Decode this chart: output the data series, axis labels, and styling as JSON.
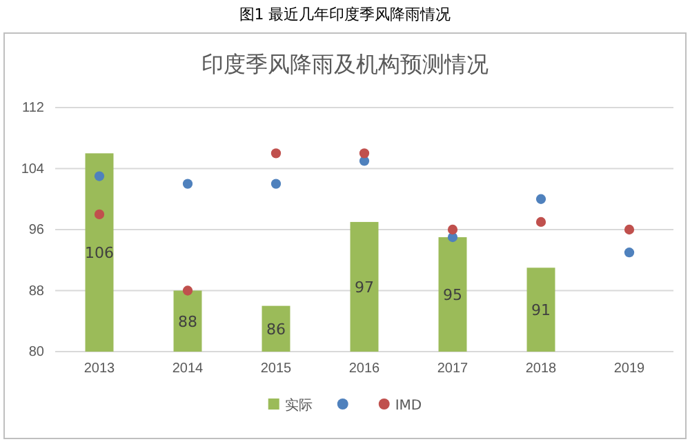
{
  "chart_data": {
    "type": "bar",
    "title": "图1  最近几年印度季风降雨情况",
    "subtitle": "印度季风降雨及机构预测情况",
    "categories": [
      "2013",
      "2014",
      "2015",
      "2016",
      "2017",
      "2018",
      "2019"
    ],
    "series": [
      {
        "name": "实际",
        "color": "#9bbb59",
        "values": [
          106,
          88,
          86,
          97,
          95,
          91,
          null
        ],
        "value_labels": [
          "106",
          "88",
          "86",
          "97",
          "95",
          "91",
          null
        ]
      },
      {
        "type": "scatter",
        "color": "#4f81bd",
        "values": [
          103,
          102,
          102,
          105,
          95,
          100,
          93
        ]
      },
      {
        "name": "IMD",
        "type": "scatter",
        "color": "#c0504d",
        "values": [
          98,
          88,
          106,
          106,
          96,
          97,
          96
        ]
      }
    ],
    "ylim": [
      80,
      112
    ],
    "yticks": [
      80,
      88,
      96,
      104,
      112
    ],
    "grid": "y",
    "legend": "bottom",
    "marker": "circle"
  }
}
